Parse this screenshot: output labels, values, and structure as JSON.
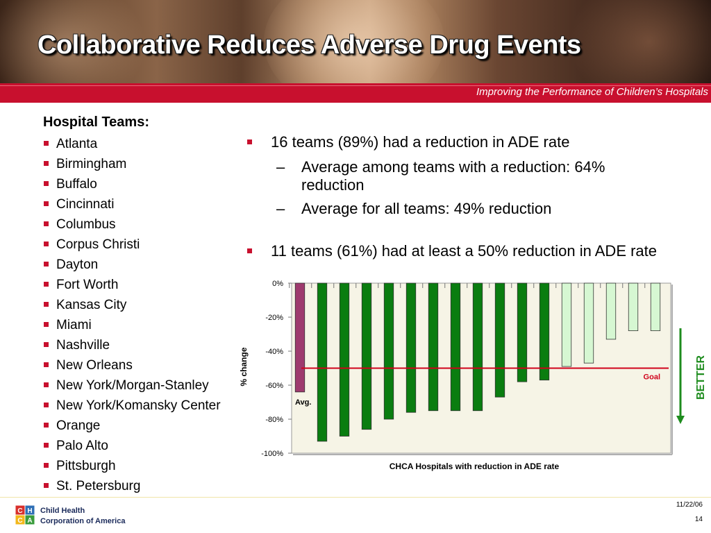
{
  "header": {
    "title": "Collaborative Reduces Adverse Drug Events",
    "tagline": "Improving the Performance of Children’s Hospitals"
  },
  "teams": {
    "heading": "Hospital Teams:",
    "items": [
      "Atlanta",
      "Birmingham",
      "Buffalo",
      "Cincinnati",
      "Columbus",
      "Corpus Christi",
      "Dayton",
      "Fort Worth",
      "Kansas City",
      "Miami",
      "Nashville",
      "New Orleans",
      "New York/Morgan-Stanley",
      "New York/Komansky Center",
      "Orange",
      "Palo Alto",
      "Pittsburgh",
      "St. Petersburg"
    ]
  },
  "points": {
    "p1": "16 teams (89%) had a reduction in ADE rate",
    "p1_sub1_line1": "Average among teams with a reduction: 64%",
    "p1_sub1_line2": "reduction",
    "p1_sub2": "Average for all teams: 49% reduction",
    "p2": "11 teams (61%) had at least a 50% reduction in ADE rate"
  },
  "chart_data": {
    "type": "bar",
    "title": "",
    "xlabel": "CHCA Hospitals with reduction in ADE rate",
    "ylabel": "% change",
    "ylim": [
      -100,
      0
    ],
    "yticks": [
      0,
      -20,
      -40,
      -60,
      -80,
      -100
    ],
    "ytick_labels": [
      "0%",
      "-20%",
      "-40%",
      "-60%",
      "-80%",
      "-100%"
    ],
    "categories": [
      "Avg.",
      "",
      "",
      "",
      "",
      "",
      "",
      "",
      "",
      "",
      "",
      "",
      "",
      "",
      "",
      "",
      ""
    ],
    "values": [
      -64,
      -93,
      -90,
      -86,
      -80,
      -76,
      -75,
      -75,
      -75,
      -67,
      -58,
      -57,
      -49,
      -47,
      -33,
      -28,
      -28
    ],
    "bar_colors": [
      "#9e3a6e",
      "#0a7d10",
      "#0a7d10",
      "#0a7d10",
      "#0a7d10",
      "#0a7d10",
      "#0a7d10",
      "#0a7d10",
      "#0a7d10",
      "#0a7d10",
      "#0a7d10",
      "#0a7d10",
      "#d6f7d2",
      "#d6f7d2",
      "#d6f7d2",
      "#d6f7d2",
      "#d6f7d2"
    ],
    "goal": {
      "label": "Goal",
      "value": -50,
      "color": "#d0021b"
    },
    "avg_label": "Avg.",
    "better_label": "BETTER",
    "better_color": "#1e8c1e",
    "grid": false
  },
  "footer": {
    "logo_letters": [
      "C",
      "H",
      "C",
      "A"
    ],
    "logo_line1": "Child Health",
    "logo_line2": "Corporation of America",
    "date": "11/22/06",
    "page": "14"
  }
}
